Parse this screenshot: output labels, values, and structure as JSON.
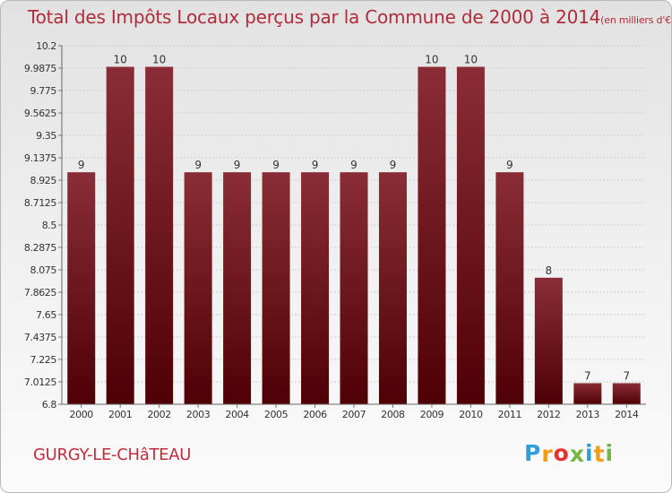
{
  "title": "Total des Impôts Locaux perçus par la Commune de 2000 à 2014",
  "unit": "(en milliers d'€)",
  "commune": "GURGY-LE-CHâTEAU",
  "logo": {
    "letters": [
      "P",
      "r",
      "o",
      "x",
      "i",
      "t",
      "i"
    ],
    "colors": [
      "#2d9fd9",
      "#f39c12",
      "#e9302c",
      "#74b843",
      "#2d9fd9",
      "#f39c12",
      "#74b843"
    ]
  },
  "colors": {
    "bar_dark": "#4f0005",
    "bar_light": "#8a2d36",
    "title": "#b02c3b"
  },
  "chart_data": {
    "type": "bar",
    "title": "Total des Impôts Locaux perçus par la Commune de 2000 à 2014",
    "xlabel": "",
    "ylabel": "",
    "categories": [
      "2000",
      "2001",
      "2002",
      "2003",
      "2004",
      "2005",
      "2006",
      "2007",
      "2008",
      "2009",
      "2010",
      "2011",
      "2012",
      "2013",
      "2014"
    ],
    "values": [
      9,
      10,
      10,
      9,
      9,
      9,
      9,
      9,
      9,
      10,
      10,
      9,
      8,
      7,
      7
    ],
    "labels": [
      "9",
      "10",
      "10",
      "9",
      "9",
      "9",
      "9",
      "9",
      "9",
      "10",
      "10",
      "9",
      "8",
      "7",
      "7"
    ],
    "ylim": [
      6.8,
      10.2
    ],
    "yticks": [
      6.8,
      7.0125,
      7.225,
      7.4375,
      7.65,
      7.8625,
      8.075,
      8.2875,
      8.5,
      8.7125,
      8.925,
      9.1375,
      9.35,
      9.5625,
      9.775,
      9.9875,
      10.2
    ],
    "ytick_labels": [
      "6.8",
      "7.0125",
      "7.225",
      "7.4375",
      "7.65",
      "7.8625",
      "8.075",
      "8.2875",
      "8.5",
      "8.7125",
      "8.925",
      "9.1375",
      "9.35",
      "9.5625",
      "9.775",
      "9.9875",
      "10.2"
    ],
    "grid": true
  }
}
